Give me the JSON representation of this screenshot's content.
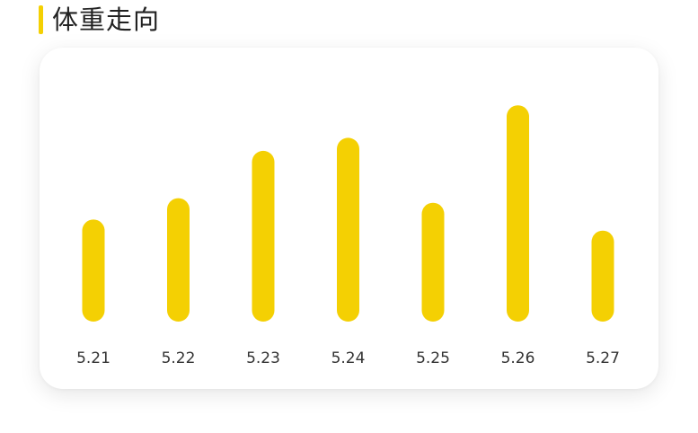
{
  "header": {
    "title": "体重走向"
  },
  "colors": {
    "accent": "#f4d003",
    "bar": "#f4d003",
    "label": "#333333"
  },
  "chart_data": {
    "type": "bar",
    "title": "体重走向",
    "categories": [
      "5.21",
      "5.22",
      "5.23",
      "5.24",
      "5.25",
      "5.26",
      "5.27"
    ],
    "values": [
      110,
      133,
      184,
      198,
      128,
      233,
      98
    ],
    "ylim": [
      0,
      240
    ],
    "grid": false,
    "legend": "none"
  }
}
